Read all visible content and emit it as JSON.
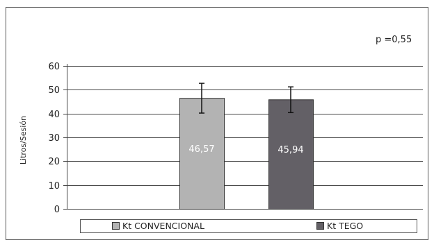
{
  "annotation": "p =0,55",
  "chart_data": {
    "type": "bar",
    "title": "",
    "xlabel": "",
    "ylabel": "Litros/Sesión",
    "ylim": [
      0,
      60
    ],
    "yticks": [
      0,
      10,
      20,
      30,
      40,
      50,
      60
    ],
    "grid": true,
    "legend_position": "bottom",
    "categories": [
      "Kt CONVENCIONAL",
      "Kt TEGO"
    ],
    "values": [
      46.57,
      45.94
    ],
    "value_labels": [
      "46,57",
      "45,94"
    ],
    "error_upper": [
      52.7,
      51.2
    ],
    "error_lower": [
      40.2,
      40.4
    ],
    "colors": [
      "#b3b3b3",
      "#636066"
    ]
  }
}
